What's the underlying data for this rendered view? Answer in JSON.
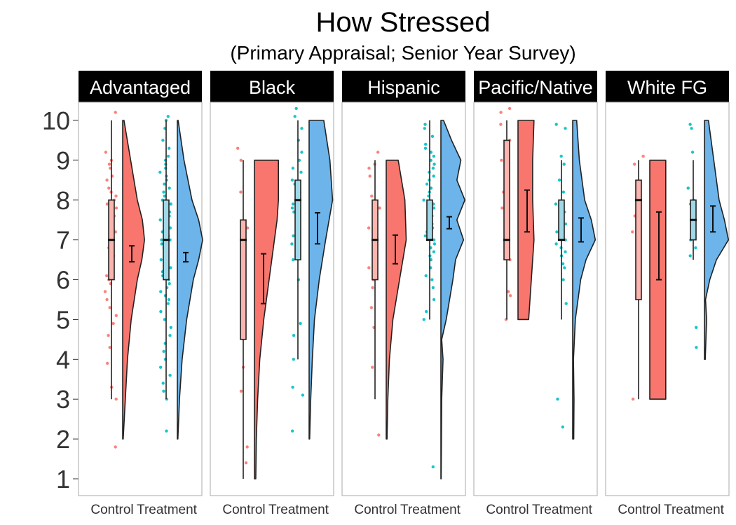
{
  "chart_data": {
    "type": "raincloud",
    "title": "How Stressed",
    "subtitle": "(Primary Appraisal; Senior Year Survey)",
    "xlabel": "",
    "ylabel": "",
    "ylim": [
      1,
      10
    ],
    "y_ticks": [
      1,
      2,
      3,
      4,
      5,
      6,
      7,
      8,
      9,
      10
    ],
    "groups": [
      "Control",
      "Treatment"
    ],
    "colors": {
      "Control": "#F8766D",
      "Treatment": "#00BFC4",
      "Treatment_cloud": "#6CB4EA"
    },
    "grid": false,
    "legend": "none",
    "panels": [
      {
        "name": "Advantaged",
        "Control": {
          "box": {
            "min": 3,
            "q1": 6,
            "median": 7,
            "q3": 8,
            "max": 10
          },
          "mean": 6.65,
          "ci": [
            6.45,
            6.85
          ],
          "range": [
            2,
            10
          ],
          "density": [
            [
              2,
              0.02
            ],
            [
              3,
              0.1
            ],
            [
              4,
              0.18
            ],
            [
              5,
              0.32
            ],
            [
              6,
              0.55
            ],
            [
              6.5,
              0.72
            ],
            [
              7,
              0.82
            ],
            [
              7.5,
              0.74
            ],
            [
              8,
              0.55
            ],
            [
              9,
              0.3
            ],
            [
              10,
              0.05
            ]
          ],
          "points": [
            10.2,
            9.2,
            9.0,
            8.9,
            8.8,
            8.6,
            8.5,
            8.3,
            8.2,
            8.1,
            8.0,
            7.9,
            7.8,
            7.6,
            7.4,
            7.2,
            7.0,
            6.9,
            6.8,
            6.6,
            6.4,
            6.3,
            6.2,
            6.1,
            6.0,
            5.9,
            5.7,
            5.5,
            5.3,
            5.1,
            4.9,
            4.6,
            4.3,
            3.9,
            3.3,
            3.0,
            1.8
          ]
        },
        "Treatment": {
          "box": {
            "min": 3,
            "q1": 6,
            "median": 7,
            "q3": 8,
            "max": 10
          },
          "mean": 6.55,
          "ci": [
            6.45,
            6.68
          ],
          "range": [
            2,
            10
          ],
          "density": [
            [
              2,
              0.02
            ],
            [
              3,
              0.08
            ],
            [
              4,
              0.18
            ],
            [
              5,
              0.35
            ],
            [
              6,
              0.6
            ],
            [
              6.5,
              0.8
            ],
            [
              7,
              0.95
            ],
            [
              7.5,
              0.8
            ],
            [
              8,
              0.55
            ],
            [
              9,
              0.25
            ],
            [
              10,
              0.03
            ]
          ],
          "points": [
            10.1,
            10.0,
            9.8,
            9.5,
            9.3,
            9.1,
            9.0,
            8.9,
            8.8,
            8.7,
            8.6,
            8.5,
            8.4,
            8.3,
            8.2,
            8.1,
            8.0,
            7.9,
            7.8,
            7.7,
            7.6,
            7.5,
            7.4,
            7.3,
            7.2,
            7.1,
            7.0,
            7.0,
            6.9,
            6.9,
            6.8,
            6.8,
            6.7,
            6.6,
            6.5,
            6.4,
            6.3,
            6.2,
            6.1,
            6.0,
            5.9,
            5.8,
            5.7,
            5.6,
            5.5,
            5.4,
            5.2,
            5.0,
            4.8,
            4.6,
            4.4,
            4.2,
            4.0,
            3.8,
            3.6,
            3.4,
            3.2,
            3.0,
            2.2
          ]
        }
      },
      {
        "name": "Black",
        "Control": {
          "box": {
            "min": 1,
            "q1": 4.5,
            "median": 7,
            "q3": 7.5,
            "max": 9
          },
          "mean": 6.0,
          "ci": [
            5.4,
            6.65
          ],
          "range": [
            1,
            9
          ],
          "density": [
            [
              1,
              0.05
            ],
            [
              2,
              0.07
            ],
            [
              3,
              0.12
            ],
            [
              4,
              0.2
            ],
            [
              5,
              0.35
            ],
            [
              6,
              0.55
            ],
            [
              7,
              0.75
            ],
            [
              7.5,
              0.85
            ],
            [
              8,
              0.9
            ],
            [
              9,
              0.9
            ]
          ],
          "points": [
            9.3,
            9.0,
            8.2,
            7.3,
            7.0,
            6.6,
            6.2,
            5.5,
            3.8,
            3.2,
            1.8,
            1.4
          ]
        },
        "Treatment": {
          "box": {
            "min": 4,
            "q1": 6.5,
            "median": 8,
            "q3": 8.5,
            "max": 10
          },
          "mean": 7.3,
          "ci": [
            6.9,
            7.68
          ],
          "range": [
            2,
            10
          ],
          "density": [
            [
              2,
              0.02
            ],
            [
              3,
              0.06
            ],
            [
              4,
              0.12
            ],
            [
              5,
              0.2
            ],
            [
              6,
              0.38
            ],
            [
              7,
              0.62
            ],
            [
              8,
              0.88
            ],
            [
              9,
              0.78
            ],
            [
              10,
              0.55
            ]
          ],
          "points": [
            10.3,
            10.1,
            9.8,
            9.5,
            9.2,
            9.0,
            8.8,
            8.7,
            8.5,
            8.4,
            8.2,
            8.0,
            7.9,
            7.8,
            7.7,
            7.5,
            7.4,
            7.1,
            6.9,
            6.5,
            6.0,
            4.9,
            4.6,
            4.0,
            3.3,
            3.1,
            2.2
          ]
        }
      },
      {
        "name": "Hispanic",
        "Control": {
          "box": {
            "min": 3,
            "q1": 6,
            "median": 7,
            "q3": 8,
            "max": 9
          },
          "mean": 6.75,
          "ci": [
            6.4,
            7.12
          ],
          "range": [
            2,
            9
          ],
          "density": [
            [
              2,
              0.03
            ],
            [
              3,
              0.06
            ],
            [
              4,
              0.12
            ],
            [
              5,
              0.25
            ],
            [
              6,
              0.5
            ],
            [
              7,
              0.75
            ],
            [
              8,
              0.7
            ],
            [
              9,
              0.45
            ]
          ],
          "points": [
            9.2,
            8.9,
            8.8,
            8.6,
            8.1,
            7.8,
            7.6,
            7.3,
            7.0,
            6.8,
            6.6,
            6.4,
            6.3,
            6.0,
            5.8,
            5.3,
            4.8,
            3.8,
            2.1
          ]
        },
        "Treatment": {
          "box": {
            "min": 5,
            "q1": 7,
            "median": 7,
            "q3": 8,
            "max": 10
          },
          "mean": 7.42,
          "ci": [
            7.28,
            7.58
          ],
          "range": [
            1,
            10
          ],
          "density": [
            [
              1,
              0.01
            ],
            [
              2,
              0.02
            ],
            [
              3,
              0.03
            ],
            [
              4,
              0.08
            ],
            [
              4.5,
              0.03
            ],
            [
              5,
              0.2
            ],
            [
              6,
              0.45
            ],
            [
              6.5,
              0.55
            ],
            [
              7,
              0.85
            ],
            [
              7.5,
              0.6
            ],
            [
              8,
              0.9
            ],
            [
              8.5,
              0.6
            ],
            [
              9,
              0.75
            ],
            [
              9.5,
              0.4
            ],
            [
              10,
              0.1
            ]
          ],
          "points": [
            9.9,
            9.8,
            9.6,
            9.4,
            9.3,
            9.2,
            9.1,
            9.0,
            8.9,
            8.8,
            8.7,
            8.6,
            8.5,
            8.4,
            8.3,
            8.2,
            8.1,
            8.0,
            7.9,
            7.8,
            7.7,
            7.6,
            7.5,
            7.4,
            7.3,
            7.2,
            7.1,
            7.0,
            6.9,
            6.8,
            6.7,
            6.6,
            6.5,
            6.3,
            6.1,
            6.0,
            5.8,
            5.5,
            5.2,
            5.0,
            1.3
          ]
        }
      },
      {
        "name": "Pacific/Native",
        "Control": {
          "box": {
            "min": 5,
            "q1": 6.5,
            "median": 7,
            "q3": 9.5,
            "max": 10
          },
          "mean": 7.72,
          "ci": [
            7.2,
            8.25
          ],
          "range": [
            5,
            10
          ],
          "density": [
            [
              5,
              0.4
            ],
            [
              6,
              0.5
            ],
            [
              7,
              0.6
            ],
            [
              8,
              0.55
            ],
            [
              9,
              0.55
            ],
            [
              10,
              0.6
            ]
          ],
          "points": [
            10.3,
            10.2,
            9.9,
            9.5,
            9.0,
            8.2,
            7.8,
            7.5,
            7.1,
            6.8,
            6.5,
            5.7,
            5.6,
            5.0
          ]
        },
        "Treatment": {
          "box": {
            "min": 5,
            "q1": 7,
            "median": 7,
            "q3": 8,
            "max": 9
          },
          "mean": 7.25,
          "ci": [
            6.95,
            7.55
          ],
          "range": [
            2,
            10
          ],
          "density": [
            [
              2,
              0.04
            ],
            [
              3,
              0.05
            ],
            [
              4,
              0.03
            ],
            [
              5,
              0.1
            ],
            [
              6,
              0.3
            ],
            [
              6.5,
              0.5
            ],
            [
              7,
              0.85
            ],
            [
              7.5,
              0.7
            ],
            [
              8,
              0.45
            ],
            [
              9,
              0.25
            ],
            [
              10,
              0.15
            ]
          ],
          "points": [
            9.9,
            9.8,
            9.1,
            8.9,
            8.5,
            8.2,
            7.9,
            7.7,
            7.4,
            7.2,
            7.0,
            6.9,
            6.8,
            6.7,
            6.6,
            6.4,
            6.3,
            6.0,
            5.4,
            3.0,
            2.3
          ]
        }
      },
      {
        "name": "White FG",
        "Control": {
          "box": {
            "min": 3,
            "q1": 5.5,
            "median": 8,
            "q3": 8.5,
            "max": 9
          },
          "mean": 6.85,
          "ci": [
            6.0,
            7.7
          ],
          "range": [
            3,
            9
          ],
          "density": [
            [
              3,
              0.6
            ],
            [
              4,
              0.6
            ],
            [
              5,
              0.6
            ],
            [
              6,
              0.6
            ],
            [
              7,
              0.6
            ],
            [
              8,
              0.6
            ],
            [
              9,
              0.6
            ]
          ],
          "points": [
            9.1,
            8.9,
            7.6,
            7.2,
            3.0
          ]
        },
        "Treatment": {
          "box": {
            "min": 6.5,
            "q1": 7,
            "median": 7.5,
            "q3": 8,
            "max": 9
          },
          "mean": 7.52,
          "ci": [
            7.2,
            7.85
          ],
          "range": [
            4,
            10
          ],
          "density": [
            [
              4,
              0.03
            ],
            [
              5,
              0.08
            ],
            [
              5.5,
              0.04
            ],
            [
              6,
              0.2
            ],
            [
              6.5,
              0.45
            ],
            [
              7,
              0.9
            ],
            [
              7.5,
              0.75
            ],
            [
              8,
              0.55
            ],
            [
              9,
              0.35
            ],
            [
              10,
              0.15
            ]
          ],
          "points": [
            9.9,
            9.8,
            9.2,
            8.3,
            8.0,
            7.9,
            7.4,
            7.2,
            7.0,
            6.8,
            6.6,
            4.8,
            4.3
          ]
        }
      }
    ]
  }
}
